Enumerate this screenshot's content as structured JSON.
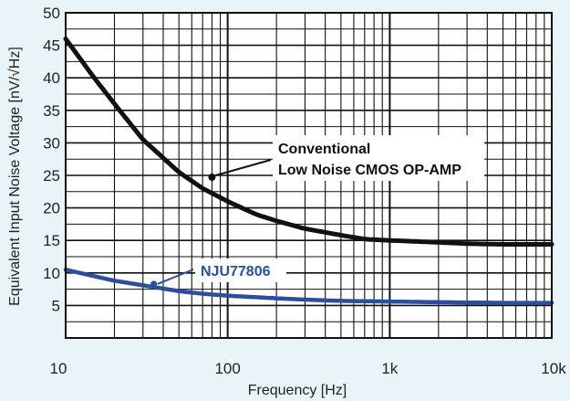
{
  "chart_data": {
    "type": "line",
    "title": "",
    "xlabel": "Frequency [Hz]",
    "ylabel": "Equivalent Input Noise Voltage [nV/√Hz]",
    "x_scale": "log",
    "xlim": [
      10,
      10000
    ],
    "ylim": [
      0,
      50
    ],
    "grid": true,
    "x_ticks": [
      10,
      100,
      1000,
      10000
    ],
    "x_tick_labels": [
      "10",
      "100",
      "1k",
      "10k"
    ],
    "y_ticks": [
      5,
      10,
      15,
      20,
      25,
      30,
      35,
      40,
      45,
      50
    ],
    "y_tick_labels": [
      "5",
      "10",
      "15",
      "20",
      "25",
      "30",
      "35",
      "40",
      "45",
      "50"
    ],
    "series": [
      {
        "label": "Conventional Low Noise CMOS OP-AMP",
        "color": "#111111",
        "x": [
          10,
          15,
          20,
          30,
          50,
          70,
          100,
          150,
          200,
          300,
          500,
          700,
          1000,
          2000,
          3000,
          5000,
          10000
        ],
        "y": [
          46,
          40,
          36,
          30.5,
          25.5,
          23,
          21,
          19,
          18,
          16.8,
          15.8,
          15.2,
          15,
          14.7,
          14.5,
          14.4,
          14.4
        ]
      },
      {
        "label": "NJU77806",
        "color": "#2b4f9c",
        "x": [
          10,
          15,
          20,
          30,
          50,
          70,
          100,
          200,
          300,
          500,
          1000,
          2000,
          5000,
          10000
        ],
        "y": [
          10.5,
          9.5,
          8.8,
          8.1,
          7.2,
          6.8,
          6.5,
          6.1,
          5.9,
          5.7,
          5.6,
          5.5,
          5.4,
          5.4
        ]
      }
    ],
    "annotations": [
      {
        "lines": [
          "Conventional",
          "Low Noise CMOS OP-AMP"
        ],
        "color": "#111111",
        "target_x": 80,
        "target_y": 25
      },
      {
        "lines": [
          "NJU77806"
        ],
        "color": "#2b4f9c",
        "target_x": 35,
        "target_y": 8.3
      }
    ]
  }
}
